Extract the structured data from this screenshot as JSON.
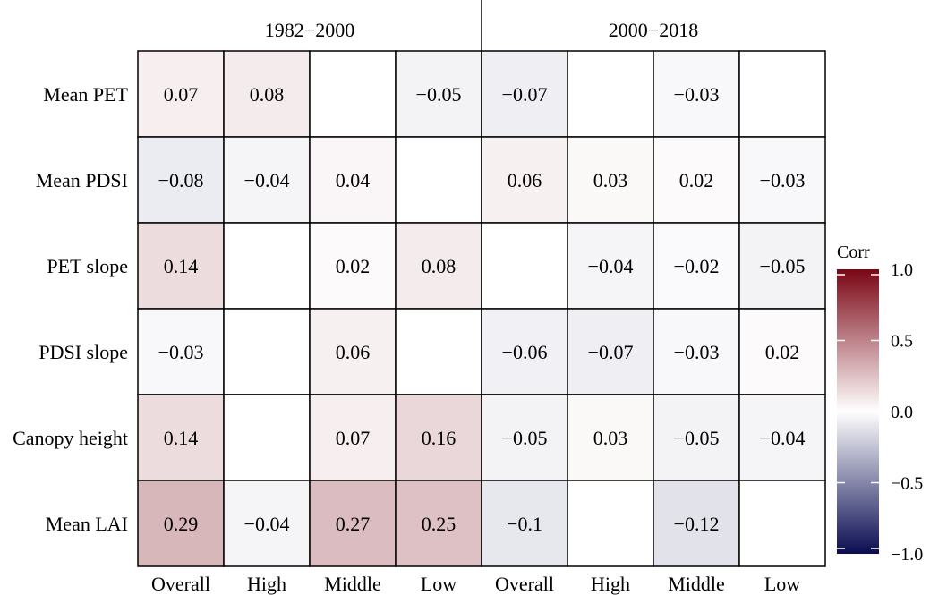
{
  "chart_data": {
    "type": "heatmap",
    "periods": [
      "1982−2000",
      "2000−2018"
    ],
    "columns": [
      "Overall",
      "High",
      "Middle",
      "Low",
      "Overall",
      "High",
      "Middle",
      "Low"
    ],
    "rows": [
      "Mean PET",
      "Mean PDSI",
      "PET slope",
      "PDSI slope",
      "Canopy height",
      "Mean LAI"
    ],
    "values": [
      [
        0.07,
        0.08,
        null,
        -0.05,
        -0.07,
        null,
        -0.03,
        null
      ],
      [
        -0.08,
        -0.04,
        0.04,
        null,
        0.06,
        0.03,
        0.02,
        -0.03
      ],
      [
        0.14,
        null,
        0.02,
        0.08,
        null,
        -0.04,
        -0.02,
        -0.05
      ],
      [
        -0.03,
        null,
        0.06,
        null,
        -0.06,
        -0.07,
        -0.03,
        0.02
      ],
      [
        0.14,
        null,
        0.07,
        0.16,
        -0.05,
        0.03,
        -0.05,
        -0.04
      ],
      [
        0.29,
        -0.04,
        0.27,
        0.25,
        -0.1,
        null,
        -0.12,
        null
      ]
    ],
    "value_labels": [
      [
        "0.07",
        "0.08",
        "",
        "−0.05",
        "−0.07",
        "",
        "−0.03",
        ""
      ],
      [
        "−0.08",
        "−0.04",
        "0.04",
        "",
        "0.06",
        "0.03",
        "0.02",
        "−0.03"
      ],
      [
        "0.14",
        "",
        "0.02",
        "0.08",
        "",
        "−0.04",
        "−0.02",
        "−0.05"
      ],
      [
        "−0.03",
        "",
        "0.06",
        "",
        "−0.06",
        "−0.07",
        "−0.03",
        "0.02"
      ],
      [
        "0.14",
        "",
        "0.07",
        "0.16",
        "−0.05",
        "0.03",
        "−0.05",
        "−0.04"
      ],
      [
        "0.29",
        "−0.04",
        "0.27",
        "0.25",
        "−0.1",
        "",
        "−0.12",
        ""
      ]
    ],
    "legend": {
      "title": "Corr",
      "range": [
        -1.0,
        1.0
      ],
      "ticks": [
        1.0,
        0.5,
        0.0,
        -0.5,
        -1.0
      ],
      "tick_labels": [
        "1.0",
        "0.5",
        "0.0",
        "−0.5",
        "−1.0"
      ],
      "colors": {
        "low": "#0a0c52",
        "mid": "#ffffff",
        "high": "#7a0614"
      },
      "placement": "right"
    }
  }
}
